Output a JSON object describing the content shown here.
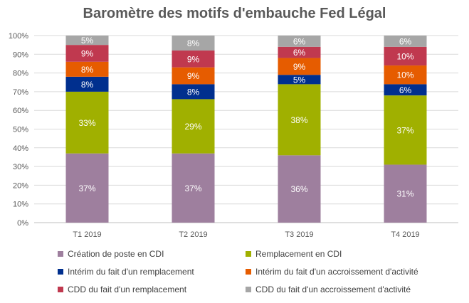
{
  "chart_data": {
    "type": "bar",
    "stacked": "percent",
    "title": "Baromètre des motifs d'embauche Fed Légal",
    "xlabel": "",
    "ylabel": "",
    "ylim": [
      0,
      100
    ],
    "yticks": [
      "0%",
      "10%",
      "20%",
      "30%",
      "40%",
      "50%",
      "60%",
      "70%",
      "80%",
      "90%",
      "100%"
    ],
    "categories": [
      "T1 2019",
      "T2 2019",
      "T3 2019",
      "T4 2019"
    ],
    "series": [
      {
        "name": "Création de poste en CDI",
        "color": "#9e7f9e",
        "values": [
          37,
          37,
          36,
          31
        ],
        "labels": [
          "37%",
          "37%",
          "36%",
          "31%"
        ]
      },
      {
        "name": "Remplacement en CDI",
        "color": "#a0b000",
        "values": [
          33,
          29,
          38,
          37
        ],
        "labels": [
          "33%",
          "29%",
          "38%",
          "37%"
        ]
      },
      {
        "name": "Intérim du fait d'un remplacement",
        "color": "#002f8e",
        "values": [
          8,
          8,
          5,
          6
        ],
        "labels": [
          "8%",
          "8%",
          "5%",
          "6%"
        ]
      },
      {
        "name": "Intérim du fait d'un accroissement d'activité",
        "color": "#e65c00",
        "values": [
          8,
          9,
          9,
          10
        ],
        "labels": [
          "8%",
          "9%",
          "9%",
          "10%"
        ]
      },
      {
        "name": "CDD du fait d'un remplacement",
        "color": "#c0394f",
        "values": [
          9,
          9,
          6,
          10
        ],
        "labels": [
          "9%",
          "9%",
          "6%",
          "10%"
        ]
      },
      {
        "name": "CDD du fait d'un accroissement d'activité",
        "color": "#a6a6a6",
        "values": [
          5,
          8,
          6,
          6
        ],
        "labels": [
          "5%",
          "8%",
          "6%",
          "6%"
        ]
      }
    ],
    "legend_position": "bottom",
    "grid": true
  }
}
